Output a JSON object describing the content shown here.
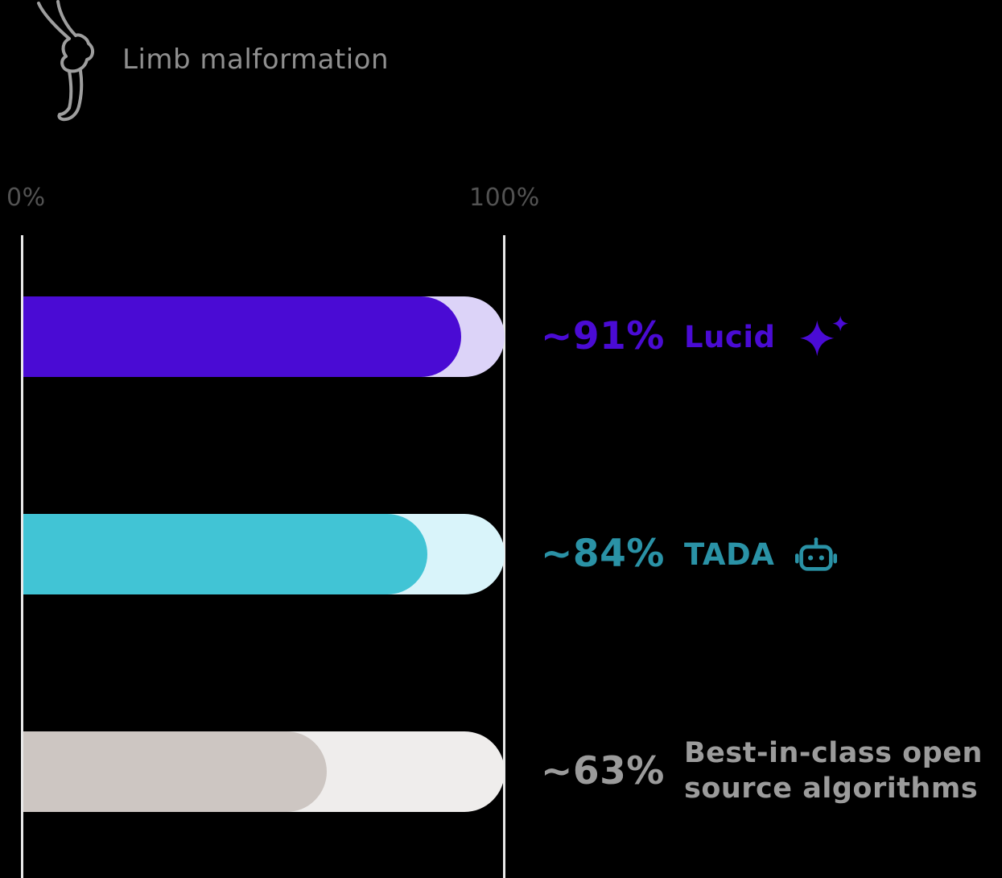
{
  "header": {
    "title": "Limb malformation",
    "icon": "limb-bone-icon"
  },
  "axis": {
    "min_label": "0%",
    "max_label": "100%"
  },
  "chart_data": {
    "type": "bar",
    "orientation": "horizontal",
    "title": "Limb malformation",
    "categories": [
      "Lucid",
      "TADA",
      "Best-in-class open source algorithms"
    ],
    "values": [
      91,
      84,
      63
    ],
    "value_labels": [
      "~91%",
      "~84%",
      "~63%"
    ],
    "xlim": [
      0,
      100
    ],
    "tick_labels": [
      "0%",
      "100%"
    ],
    "grid": false,
    "legend_position": "right-of-bars"
  },
  "bars": [
    {
      "value": 91,
      "label": "~91%",
      "name": "Lucid",
      "icon": "sparkle-icon",
      "color": "#4a0bd4",
      "track": "#dcd3f8",
      "text_color": "#4a0bd4"
    },
    {
      "value": 84,
      "label": "~84%",
      "name": "TADA",
      "icon": "robot-icon",
      "color": "#41c4d5",
      "track": "#d9f4fa",
      "text_color": "#2a92a6"
    },
    {
      "value": 63,
      "label": "~63%",
      "name": "Best-in-class open source algorithms",
      "icon": "",
      "color": "#cdc6c2",
      "track": "#efedec",
      "text_color": "#9b9b9b"
    }
  ],
  "colors": {
    "background": "#000000",
    "axis_line": "#e9e9e9",
    "tick_text": "#525252",
    "title_text": "#8f8f8f"
  }
}
